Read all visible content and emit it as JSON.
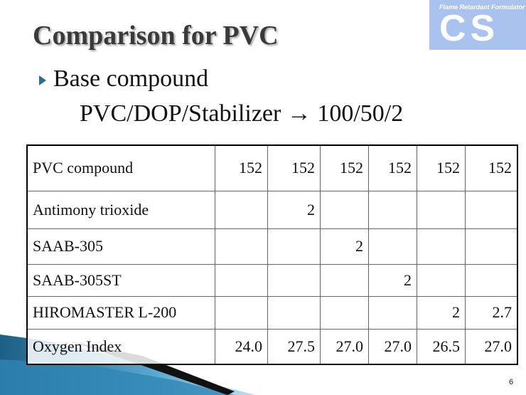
{
  "header": {
    "title": "Comparison for PVC"
  },
  "logo": {
    "tagline": "Flame Retardant Formulator",
    "mark": "CS"
  },
  "bullets": [
    {
      "text": "Base compound",
      "detail": "PVC/DOP/Stabilizer → 100/50/2"
    }
  ],
  "table": {
    "rows": [
      [
        "PVC compound",
        "152",
        "152",
        "152",
        "152",
        "152",
        "152"
      ],
      [
        "Antimony trioxide",
        null,
        "2",
        null,
        null,
        null,
        null
      ],
      [
        "SAAB-305",
        null,
        null,
        "2",
        null,
        null,
        null
      ],
      [
        "SAAB-305ST",
        null,
        null,
        null,
        "2",
        null,
        null
      ],
      [
        "HIROMASTER L-200",
        null,
        null,
        null,
        null,
        "2",
        "2.7"
      ],
      [
        "Oxygen Index",
        "24.0",
        "27.5",
        "27.0",
        "27.0",
        "26.5",
        "27.0"
      ]
    ]
  },
  "footer": {
    "page": "6"
  }
}
